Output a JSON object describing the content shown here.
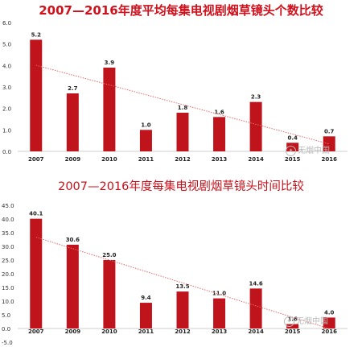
{
  "chart_data": [
    {
      "type": "bar",
      "title": "2007—2016年度平均每集电视剧烟草镜头个数比较",
      "categories": [
        "2007",
        "2009",
        "2010",
        "2011",
        "2012",
        "2013",
        "2014",
        "2015",
        "2016"
      ],
      "values": [
        5.2,
        2.7,
        3.9,
        1.0,
        1.8,
        1.6,
        2.3,
        0.4,
        0.7
      ],
      "value_labels": [
        "5.2",
        "2.7",
        "3.9",
        "1.0",
        "1.8",
        "1.6",
        "2.3",
        "0.4",
        "0.7"
      ],
      "yticks": [
        "0.0",
        "1.0",
        "2.0",
        "3.0",
        "4.0",
        "5.0",
        "6.0"
      ],
      "ylim": [
        0,
        6
      ],
      "trendline": true,
      "bar_color": "#c0141c",
      "trend_color": "#e36a6a"
    },
    {
      "type": "bar",
      "title": "2007—2016年度每集电视剧烟草镜头时间比较",
      "categories": [
        "2007",
        "2009",
        "2010",
        "2011",
        "2012",
        "2013",
        "2014",
        "2015",
        "2016"
      ],
      "values": [
        40.1,
        30.6,
        25.0,
        9.4,
        13.5,
        11.0,
        14.6,
        1.6,
        4.0
      ],
      "value_labels": [
        "40.1",
        "30.6",
        "25.0",
        "9.4",
        "13.5",
        "11.0",
        "14.6",
        "1.6",
        "4.0"
      ],
      "yticks": [
        "-5.0",
        "0.0",
        "5.0",
        "10.0",
        "15.0",
        "20.0",
        "25.0",
        "30.0",
        "35.0",
        "40.0",
        "45.0"
      ],
      "ylim": [
        -5,
        45
      ],
      "trendline": true,
      "bar_color": "#c0141c",
      "trend_color": "#e36a6a"
    }
  ],
  "watermark": {
    "text": "无烟中国"
  }
}
